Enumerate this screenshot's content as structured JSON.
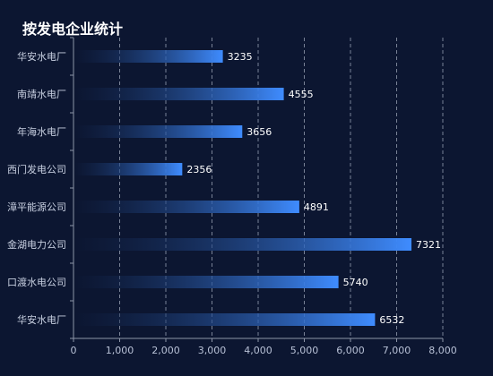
{
  "title": "按发电企业统计",
  "colors": {
    "background": "#0c1631",
    "bar_start": "#0c1631",
    "bar_end": "#3f8cff",
    "grid": "#8d95a8",
    "axis": "#8d95a8"
  },
  "chart_data": {
    "type": "bar",
    "orientation": "horizontal",
    "title": "按发电企业统计",
    "xlabel": "",
    "ylabel": "",
    "categories": [
      "华安水电厂",
      "南靖水电厂",
      "年海水电厂",
      "西门发电公司",
      "漳平能源公司",
      "金湖电力公司",
      "口渡水电公司",
      "华安水电厂"
    ],
    "values": [
      3235,
      4555,
      3656,
      2356,
      4891,
      7321,
      5740,
      6532
    ],
    "value_labels": [
      "3235",
      "4555",
      "3656",
      "2356",
      "4891",
      "7321",
      "5740",
      "6532"
    ],
    "xlim": [
      0,
      8000
    ],
    "x_ticks": [
      0,
      1000,
      2000,
      3000,
      4000,
      5000,
      6000,
      7000,
      8000
    ],
    "x_tick_labels": [
      "0",
      "1,000",
      "2,000",
      "3,000",
      "4,000",
      "5,000",
      "6,000",
      "7,000",
      "8,000"
    ],
    "grid": "vertical dashed",
    "legend": "none"
  }
}
